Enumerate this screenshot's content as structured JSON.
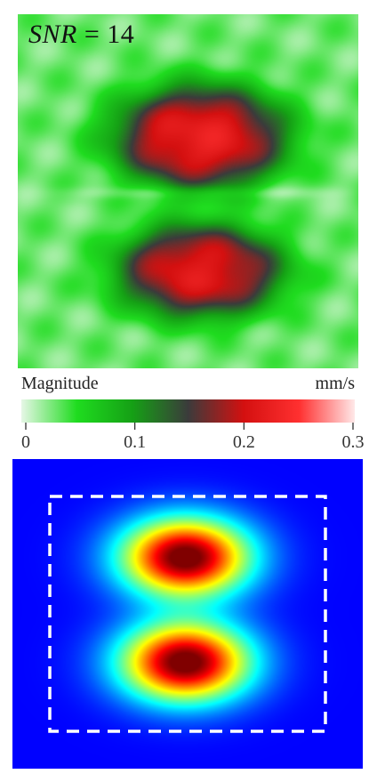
{
  "chart_data": [
    {
      "type": "heatmap",
      "title": "",
      "annotation": {
        "prefix": "SNR",
        "suffix": " = 14"
      },
      "colorbar": {
        "label": "Magnitude",
        "unit": "mm/s",
        "range": [
          0,
          0.3
        ],
        "ticks": [
          0,
          0.1,
          0.2,
          0.3
        ],
        "tick_labels": [
          "0",
          "0.1",
          "0.2",
          "0.3"
        ],
        "colors": [
          "#e6f7e6",
          "#1fdc1f",
          "#15a015",
          "#3b3b3b",
          "#d41010",
          "#ff3030",
          "#ffe8e8"
        ]
      },
      "features": [
        {
          "name": "upper-lobe",
          "peak_value": 0.22
        },
        {
          "name": "lower-lobe",
          "peak_value": 0.21
        }
      ],
      "background_value": 0.03
    },
    {
      "type": "heatmap",
      "title": "",
      "colormap": "jet",
      "range": [
        0,
        0.3
      ],
      "features": [
        {
          "name": "upper-lobe",
          "peak_value": 0.3
        },
        {
          "name": "lower-lobe",
          "peak_value": 0.3
        }
      ],
      "roi_box": {
        "style": "dashed",
        "color": "#ffffff"
      }
    }
  ]
}
